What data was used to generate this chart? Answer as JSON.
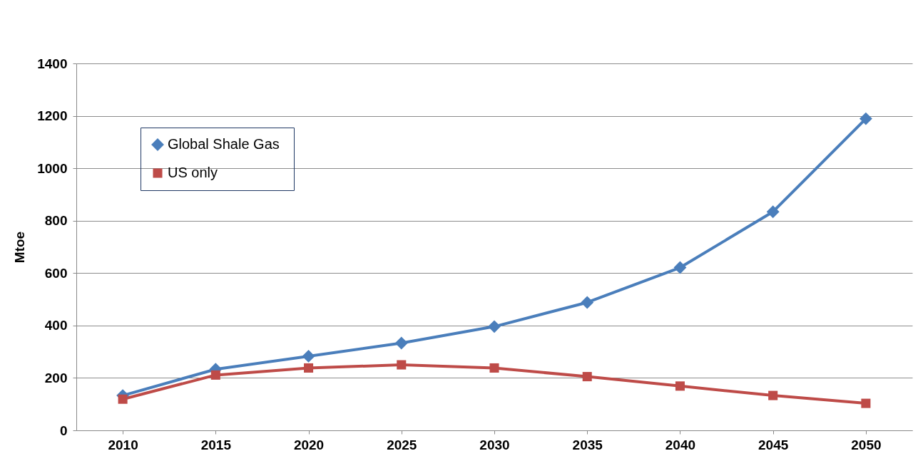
{
  "chart_data": {
    "type": "line",
    "ylabel": "Mtoe",
    "categories": [
      "2010",
      "2015",
      "2020",
      "2025",
      "2030",
      "2035",
      "2040",
      "2045",
      "2050"
    ],
    "series": [
      {
        "name": "Global Shale  Gas",
        "color": "#4a7ebb",
        "marker": "diamond",
        "values": [
          133,
          233,
          283,
          333,
          396,
          488,
          621,
          834,
          1189
        ]
      },
      {
        "name": "US only",
        "color": "#be4b48",
        "marker": "square",
        "values": [
          119,
          211,
          238,
          250,
          238,
          205,
          169,
          133,
          103
        ]
      }
    ],
    "ylim": [
      0,
      1400
    ],
    "yticks": [
      0,
      200,
      400,
      600,
      800,
      1000,
      1200,
      1400
    ],
    "grid": "y",
    "legend": "top left"
  }
}
